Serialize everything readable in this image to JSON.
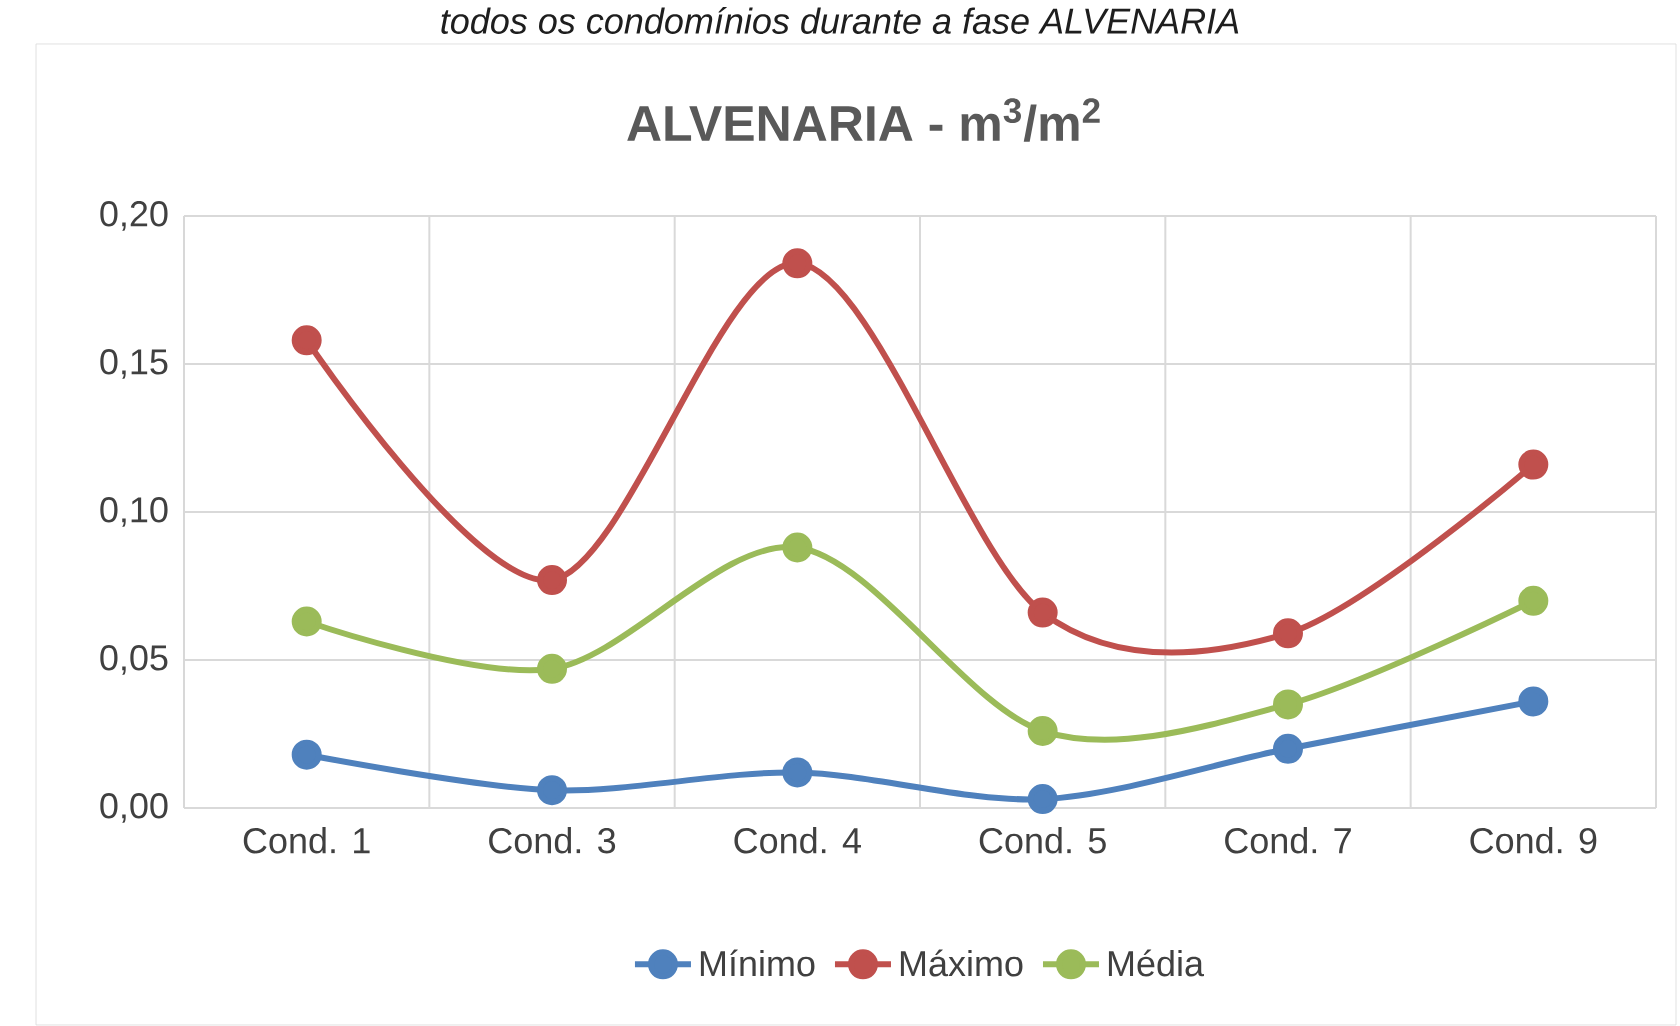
{
  "chart_data": {
    "type": "line",
    "title": "ALVENARIA - m$^{3}$/m$^{2}$",
    "annotations": [
      "todos os condomínios durante a fase ALVENARIA"
    ],
    "categories": [
      "Cond. 1",
      "Cond. 3",
      "Cond. 4",
      "Cond. 5",
      "Cond. 7",
      "Cond. 9"
    ],
    "series": [
      {
        "name": "Mínimo",
        "color": "#4f81bd",
        "values": [
          0.018,
          0.006,
          0.012,
          0.003,
          0.02,
          0.036
        ]
      },
      {
        "name": "Máximo",
        "color": "#c0504d",
        "values": [
          0.158,
          0.077,
          0.184,
          0.066,
          0.059,
          0.116
        ]
      },
      {
        "name": "Média",
        "color": "#9bbb59",
        "values": [
          0.063,
          0.047,
          0.088,
          0.026,
          0.035,
          0.07
        ]
      }
    ],
    "ylim": [
      0,
      0.2
    ],
    "yticks": [
      {
        "value": 0,
        "label": "0,00"
      },
      {
        "value": 0.05,
        "label": "0,05"
      },
      {
        "value": 0.1,
        "label": "0,10"
      },
      {
        "value": 0.15,
        "label": "0,15"
      },
      {
        "value": 0.2,
        "label": "0,20"
      }
    ],
    "grid": true,
    "legend": "bottom",
    "marker": "circle",
    "line_style": "solid"
  }
}
